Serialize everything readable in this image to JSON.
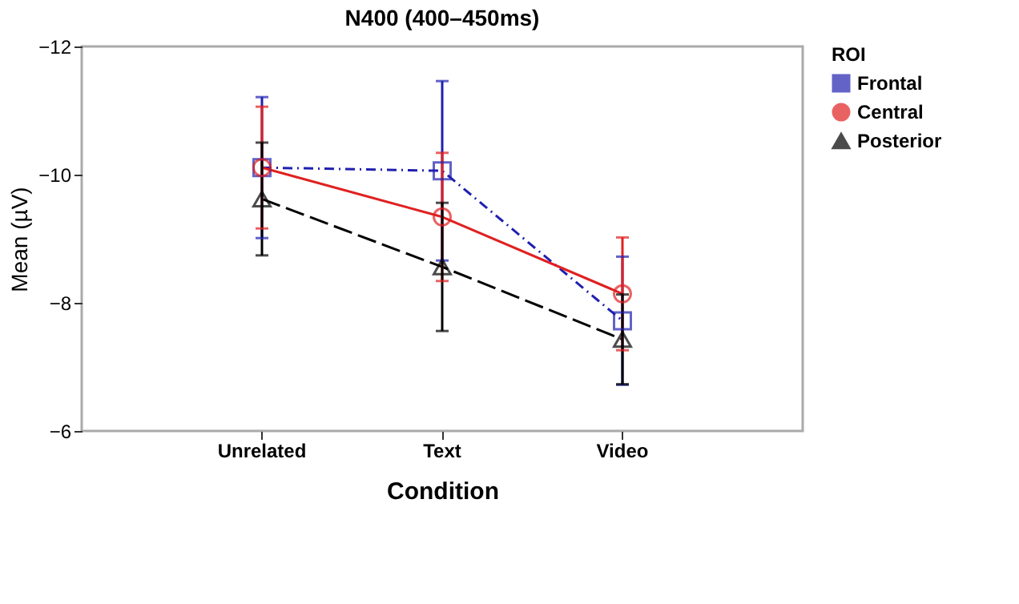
{
  "chart_data": {
    "type": "line",
    "title": "N400 (400–450ms)",
    "xlabel": "Condition",
    "ylabel": "Mean (µV)",
    "legend_title": "ROI",
    "categories": [
      "Unrelated",
      "Text",
      "Video"
    ],
    "series": [
      {
        "name": "Frontal",
        "color": "#2020b0",
        "values": [
          -10.11,
          -10.06,
          -7.72
        ],
        "errors": [
          1.1,
          1.4,
          1.0
        ],
        "marker": "square",
        "line_style": "dashdot"
      },
      {
        "name": "Central",
        "color": "#e02020",
        "values": [
          -10.11,
          -9.34,
          -8.14
        ],
        "errors": [
          0.95,
          1.0,
          0.88
        ],
        "marker": "circle",
        "line_style": "solid"
      },
      {
        "name": "Posterior",
        "color": "#000000",
        "values": [
          -9.62,
          -8.56,
          -7.43
        ],
        "errors": [
          0.88,
          1.0,
          0.7
        ],
        "marker": "triangle",
        "line_style": "longdash"
      }
    ],
    "ylim": [
      -6,
      -12
    ],
    "yticks": [
      -12,
      -10,
      -8,
      -6
    ],
    "grid": false,
    "legend": "right"
  }
}
